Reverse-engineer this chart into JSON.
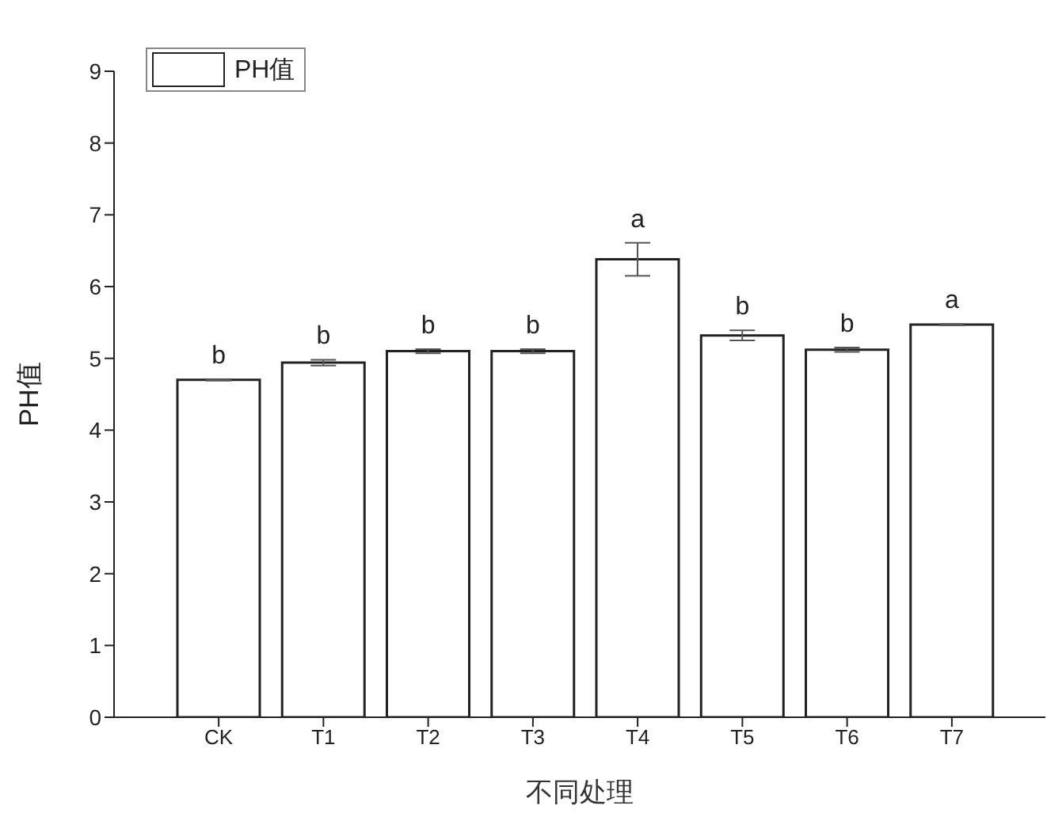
{
  "chart_data": {
    "type": "bar",
    "xlabel": "不同处理",
    "ylabel": "PH值",
    "categories": [
      "CK",
      "T1",
      "T2",
      "T3",
      "T4",
      "T5",
      "T6",
      "T7"
    ],
    "series": [
      {
        "name": "PH值",
        "color": "#ffffff",
        "values": [
          4.7,
          4.94,
          5.1,
          5.1,
          6.38,
          5.32,
          5.12,
          5.47
        ],
        "errors": [
          0.01,
          0.04,
          0.03,
          0.03,
          0.23,
          0.07,
          0.03,
          0.01
        ]
      }
    ],
    "ylim": [
      0,
      9
    ],
    "yticks": [
      0,
      1,
      2,
      3,
      4,
      5,
      6,
      7,
      8,
      9
    ],
    "grid": false,
    "legend": "top left",
    "annotations": [
      "b",
      "b",
      "b",
      "b",
      "a",
      "b",
      "b",
      "a"
    ]
  }
}
